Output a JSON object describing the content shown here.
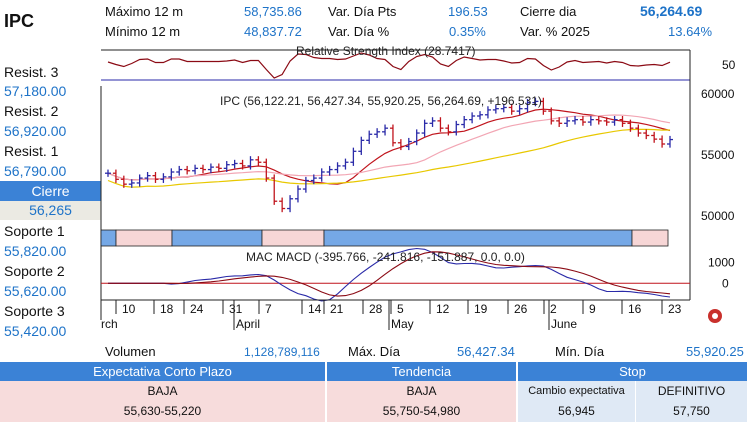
{
  "header": {
    "symbol": "IPC",
    "max12_label": "Máximo 12 m",
    "max12_value": "58,735.86",
    "min12_label": "Mínimo 12 m",
    "min12_value": "48,837.72",
    "var_pts_label": "Var. Día Pts",
    "var_pts_value": "196.53",
    "var_pct_label": "Var. Día %",
    "var_pct_value": "0.35%",
    "close_label": "Cierre dia",
    "close_value": "56,264.69",
    "var_year_label": "Var. % 2025",
    "var_year_value": "13.64%"
  },
  "levels": {
    "r3_label": "Resist. 3",
    "r3_value": "57,180.00",
    "r2_label": "Resist. 2",
    "r2_value": "56,920.00",
    "r1_label": "Resist. 1",
    "r1_value": "56,790.00",
    "close_label": "Cierre",
    "close_value": "56,265",
    "s1_label": "Soporte 1",
    "s1_value": "55,820.00",
    "s2_label": "Soporte 2",
    "s2_value": "55,620.00",
    "s3_label": "Soporte 3",
    "s3_value": "55,420.00"
  },
  "chart_data": {
    "type": "candlestick",
    "price_title": "IPC (56,122.21, 56,427.34, 55,920.25, 56,264.69, +196.531)",
    "rsi_title": "Relative Strength Index (28.7417)",
    "macd_title": "MAC MACD (-395.766, -241.816, -151.887, 0.0, 0.0)",
    "price_ticks": [
      50000,
      55000,
      60000
    ],
    "price_ylim": [
      49000,
      60500
    ],
    "rsi_ticks": [
      50
    ],
    "macd_ticks": [
      0,
      1000
    ],
    "macd_ylim": [
      -800,
      1500
    ],
    "date_ticks": [
      "10",
      "18",
      "24",
      "31",
      "7",
      "14",
      "21",
      "28",
      "5",
      "12",
      "19",
      "26",
      "2",
      "9",
      "16",
      "23"
    ],
    "month_labels": [
      "rch",
      "April",
      "May",
      "June"
    ],
    "closes": [
      53500,
      53000,
      52600,
      52700,
      53100,
      53300,
      53000,
      53200,
      53600,
      53800,
      53700,
      53900,
      53800,
      54000,
      53900,
      54200,
      54300,
      54100,
      54600,
      54400,
      53100,
      51200,
      50600,
      51400,
      52200,
      52900,
      53100,
      53600,
      53800,
      54100,
      54400,
      55300,
      56200,
      56700,
      56900,
      57200,
      56000,
      55700,
      56100,
      56800,
      57600,
      57800,
      57200,
      56900,
      57500,
      57900,
      58200,
      58300,
      58700,
      58800,
      58900,
      58600,
      58800,
      59300,
      59400,
      58600,
      57800,
      57600,
      57800,
      57900,
      57700,
      57900,
      57800,
      57700,
      57900,
      57600,
      57200,
      56800,
      56600,
      56300,
      55900,
      56265
    ],
    "trend_bands": [
      "blue",
      "pink",
      "blue",
      "pink",
      "blue",
      "pink"
    ]
  },
  "footer": {
    "vol_label": "Volumen",
    "vol_value": "1,128,789,116",
    "maxd_label": "Máx. Día",
    "maxd_value": "56,427.34",
    "mind_label": "Mín. Día",
    "mind_value": "55,920.25",
    "exp_header": "Expectativa Corto Plazo",
    "exp_dir": "BAJA",
    "exp_range": "55,630-55,220",
    "trend_header": "Tendencia",
    "trend_dir": "BAJA",
    "trend_range": "55,750-54,980",
    "stop_header": "Stop",
    "stop_change_label": "Cambio expectativa",
    "stop_change_value": "56,945",
    "stop_def_label": "DEFINITIVO",
    "stop_def_value": "57,750"
  },
  "colors": {
    "accent": "#3b82d6",
    "price_bar": "#2a2aa8",
    "ma_red": "#c0141c",
    "ma_pink": "#f2a6b4",
    "ma_yellow": "#e8c800"
  }
}
